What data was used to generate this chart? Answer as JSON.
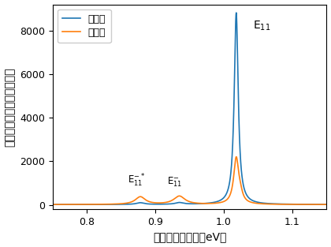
{
  "title": "",
  "xlabel": "発光エネルギー（eV）",
  "ylabel": "発光強度（カウント／秒）",
  "xlim": [
    0.75,
    1.15
  ],
  "ylim": [
    -200,
    9200
  ],
  "yticks": [
    0,
    2000,
    4000,
    6000,
    8000
  ],
  "xticks": [
    0.8,
    0.9,
    1.0,
    1.1
  ],
  "legend_before": "反応前",
  "legend_after": "反応後",
  "color_before": "#1f77b4",
  "color_after": "#ff7f0e",
  "background_color": "#ffffff",
  "figsize": [
    4.2,
    3.13
  ],
  "dpi": 100
}
